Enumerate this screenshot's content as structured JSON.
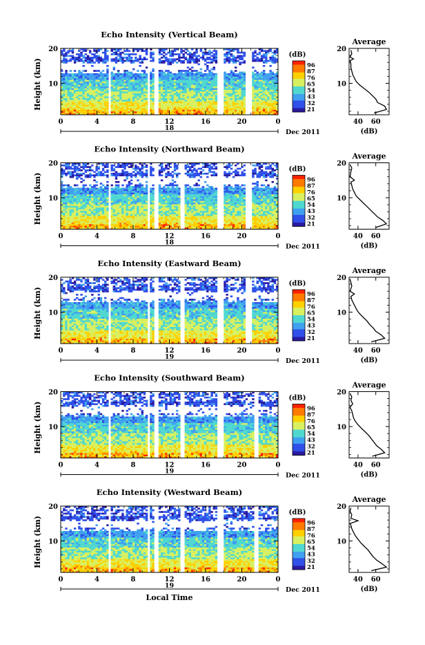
{
  "figure": {
    "xlabel": "Local Time",
    "ylabel": "Height (km)",
    "colorbar_unit": "(dB)",
    "avg_title": "Average",
    "avg_xlabel": "(dB)",
    "date_label": "Dec 2011",
    "colorbar_ticks": [
      "96",
      "87",
      "76",
      "65",
      "54",
      "43",
      "32",
      "21"
    ],
    "colorbar_colors": [
      "#ff2200",
      "#ff7a00",
      "#ffd000",
      "#d8f060",
      "#50d8d0",
      "#40a0f0",
      "#3050e8",
      "#2a1aa0"
    ]
  },
  "chart_data": [
    {
      "type": "heatmap",
      "title": "Echo Intensity (Vertical Beam)",
      "xlabel": "",
      "ylabel": "Height (km)",
      "x_ticks": [
        "0",
        "4",
        "8",
        "12",
        "16",
        "20",
        "0"
      ],
      "day_label": "18",
      "y_ticks": [
        "20",
        "10"
      ],
      "xlim": [
        0,
        24
      ],
      "ylim": [
        1,
        20
      ],
      "data_gaps_hours": [
        [
          5.2,
          5.6
        ],
        [
          9.6,
          9.8
        ],
        [
          10.4,
          10.7
        ],
        [
          17.4,
          18.0
        ],
        [
          20.4,
          21.0
        ]
      ],
      "average_profile": {
        "x_ticks": [
          "40",
          "60"
        ],
        "xlim": [
          30,
          75
        ],
        "ylim": [
          1,
          20
        ],
        "points": [
          [
            58,
            1.5
          ],
          [
            72,
            2.5
          ],
          [
            70,
            3.5
          ],
          [
            62,
            4.5
          ],
          [
            60,
            5.5
          ],
          [
            56,
            6.5
          ],
          [
            52,
            7.5
          ],
          [
            47,
            8.5
          ],
          [
            42,
            9.5
          ],
          [
            38,
            10.5
          ],
          [
            36,
            11.5
          ],
          [
            34,
            12.5
          ],
          [
            33,
            13.5
          ],
          [
            32,
            14.5
          ],
          [
            32,
            15.5
          ],
          [
            31,
            16.5
          ],
          [
            35,
            17
          ],
          [
            31,
            17.5
          ],
          [
            33,
            18.5
          ],
          [
            32,
            19.5
          ]
        ]
      }
    },
    {
      "type": "heatmap",
      "title": "Echo Intensity (Northward Beam)",
      "xlabel": "",
      "ylabel": "Height (km)",
      "x_ticks": [
        "0",
        "4",
        "8",
        "12",
        "16",
        "20",
        "0"
      ],
      "day_label": "18",
      "y_ticks": [
        "20",
        "10"
      ],
      "xlim": [
        0,
        24
      ],
      "ylim": [
        1,
        20
      ],
      "data_gaps_hours": [
        [
          5.2,
          5.6
        ],
        [
          9.6,
          9.8
        ],
        [
          10.4,
          10.7
        ],
        [
          13.3,
          13.6
        ],
        [
          17.4,
          18.0
        ],
        [
          20.4,
          21.0
        ]
      ],
      "average_profile": {
        "x_ticks": [
          "40",
          "60"
        ],
        "xlim": [
          30,
          75
        ],
        "ylim": [
          1,
          20
        ],
        "points": [
          [
            60,
            1.5
          ],
          [
            72,
            2.5
          ],
          [
            68,
            3.5
          ],
          [
            62,
            4.5
          ],
          [
            58,
            5.5
          ],
          [
            54,
            6.5
          ],
          [
            50,
            7.5
          ],
          [
            46,
            8.5
          ],
          [
            42,
            9.5
          ],
          [
            38,
            10.5
          ],
          [
            36,
            11.5
          ],
          [
            34,
            12.5
          ],
          [
            33,
            13.5
          ],
          [
            32,
            14.5
          ],
          [
            36,
            15
          ],
          [
            31,
            16
          ],
          [
            32,
            17.5
          ],
          [
            33,
            18.5
          ],
          [
            31,
            19.5
          ]
        ]
      }
    },
    {
      "type": "heatmap",
      "title": "Echo Intensity (Eastward Beam)",
      "xlabel": "",
      "ylabel": "Height (km)",
      "x_ticks": [
        "0",
        "4",
        "8",
        "12",
        "16",
        "20",
        "0"
      ],
      "day_label": "19",
      "y_ticks": [
        "20",
        "10"
      ],
      "xlim": [
        0,
        24
      ],
      "ylim": [
        1,
        20
      ],
      "data_gaps_hours": [
        [
          5.2,
          5.6
        ],
        [
          9.6,
          9.8
        ],
        [
          10.4,
          10.7
        ],
        [
          13.3,
          13.6
        ],
        [
          17.4,
          18.0
        ],
        [
          20.4,
          21.0
        ]
      ],
      "average_profile": {
        "x_ticks": [
          "40",
          "60"
        ],
        "xlim": [
          30,
          75
        ],
        "ylim": [
          1,
          20
        ],
        "points": [
          [
            55,
            1.5
          ],
          [
            70,
            2.5
          ],
          [
            66,
            3.5
          ],
          [
            60,
            4.5
          ],
          [
            57,
            5.5
          ],
          [
            53,
            6.5
          ],
          [
            50,
            7.5
          ],
          [
            46,
            8.5
          ],
          [
            42,
            9.5
          ],
          [
            39,
            10.5
          ],
          [
            37,
            11.5
          ],
          [
            35,
            12.5
          ],
          [
            33,
            13.5
          ],
          [
            32,
            14.5
          ],
          [
            36,
            15.2
          ],
          [
            31,
            16
          ],
          [
            33,
            17.5
          ],
          [
            32,
            18.5
          ],
          [
            31,
            19.5
          ]
        ]
      }
    },
    {
      "type": "heatmap",
      "title": "Echo Intensity (Southward Beam)",
      "xlabel": "",
      "ylabel": "Height (km)",
      "x_ticks": [
        "0",
        "4",
        "8",
        "12",
        "16",
        "20",
        "0"
      ],
      "day_label": "19",
      "y_ticks": [
        "20",
        "10"
      ],
      "xlim": [
        0,
        24
      ],
      "ylim": [
        1,
        20
      ],
      "data_gaps_hours": [
        [
          5.2,
          5.6
        ],
        [
          9.6,
          9.8
        ],
        [
          10.4,
          10.7
        ],
        [
          13.3,
          13.6
        ],
        [
          17.4,
          18.0
        ],
        [
          21.4,
          21.8
        ]
      ],
      "average_profile": {
        "x_ticks": [
          "40",
          "60"
        ],
        "xlim": [
          30,
          75
        ],
        "ylim": [
          1,
          20
        ],
        "points": [
          [
            56,
            1.5
          ],
          [
            70,
            2.5
          ],
          [
            66,
            3.5
          ],
          [
            61,
            4.5
          ],
          [
            58,
            5.5
          ],
          [
            55,
            6.5
          ],
          [
            52,
            7.5
          ],
          [
            48,
            8.5
          ],
          [
            44,
            9.5
          ],
          [
            40,
            10.5
          ],
          [
            37,
            11.5
          ],
          [
            35,
            12.5
          ],
          [
            34,
            13.5
          ],
          [
            33,
            14.5
          ],
          [
            31,
            15.5
          ],
          [
            34,
            16.5
          ],
          [
            32,
            17.5
          ],
          [
            33,
            18.5
          ],
          [
            31,
            19.5
          ]
        ]
      }
    },
    {
      "type": "heatmap",
      "title": "Echo Intensity (Westward Beam)",
      "xlabel": "Local Time",
      "ylabel": "Height (km)",
      "x_ticks": [
        "0",
        "4",
        "8",
        "12",
        "16",
        "20",
        "0"
      ],
      "day_label": "19",
      "y_ticks": [
        "20",
        "10"
      ],
      "xlim": [
        0,
        24
      ],
      "ylim": [
        1,
        20
      ],
      "data_gaps_hours": [
        [
          5.2,
          5.6
        ],
        [
          9.6,
          9.8
        ],
        [
          10.4,
          10.7
        ],
        [
          13.3,
          13.6
        ],
        [
          17.4,
          18.0
        ],
        [
          21.4,
          21.8
        ]
      ],
      "average_profile": {
        "x_ticks": [
          "40",
          "60"
        ],
        "xlim": [
          30,
          75
        ],
        "ylim": [
          1,
          20
        ],
        "points": [
          [
            55,
            1.5
          ],
          [
            72,
            2.5
          ],
          [
            67,
            3.5
          ],
          [
            61,
            4.5
          ],
          [
            57,
            5.5
          ],
          [
            54,
            6.5
          ],
          [
            51,
            7.5
          ],
          [
            47,
            8.5
          ],
          [
            43,
            9.5
          ],
          [
            40,
            10.5
          ],
          [
            37,
            11.5
          ],
          [
            35,
            12.5
          ],
          [
            33,
            13.5
          ],
          [
            32,
            14.5
          ],
          [
            31,
            15
          ],
          [
            40,
            15.8
          ],
          [
            32,
            16.5
          ],
          [
            33,
            17.5
          ],
          [
            31,
            18.5
          ],
          [
            32,
            19.5
          ]
        ]
      }
    }
  ]
}
